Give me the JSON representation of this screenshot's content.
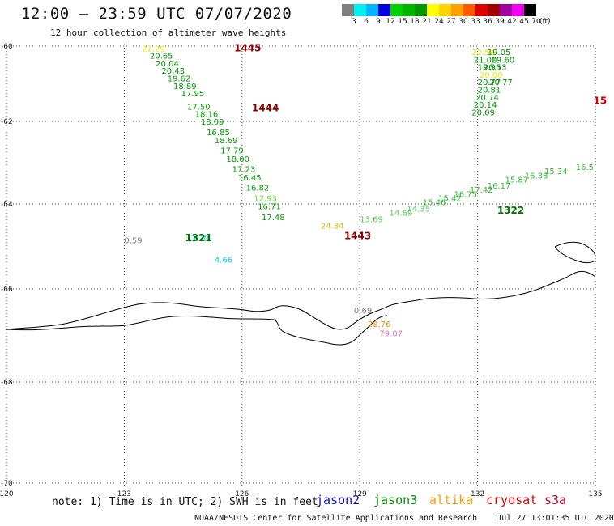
{
  "header": {
    "title": "12:00 — 23:59 UTC 07/07/2020",
    "subtitle": "12 hour collection of altimeter wave heights"
  },
  "legend": {
    "colors": [
      "#808080",
      "#00f0f0",
      "#00b4ff",
      "#0000e0",
      "#00d200",
      "#00b400",
      "#009600",
      "#ffff00",
      "#ffd200",
      "#ffa000",
      "#ff5a00",
      "#dc0000",
      "#a00000",
      "#a000a0",
      "#f000f0",
      "#000000"
    ],
    "labels": [
      "3",
      "6",
      "9",
      "12",
      "15",
      "18",
      "21",
      "24",
      "27",
      "30",
      "33",
      "36",
      "39",
      "42",
      "45",
      "70"
    ],
    "unit": "(ft)"
  },
  "axes": {
    "lon_ticks": [
      "120",
      "123",
      "126",
      "129",
      "132",
      "135"
    ],
    "lat_ticks": [
      "-60",
      "-62",
      "-64",
      "-66",
      "-68",
      "-70"
    ]
  },
  "passes": [
    {
      "label": "1445",
      "color": "#8b0000",
      "lon": 125.8,
      "lat": -60.05
    },
    {
      "label": "1444",
      "color": "#8b0000",
      "lon": 126.25,
      "lat": -61.65
    },
    {
      "label": "1321",
      "color": "#007000",
      "lon": 124.55,
      "lat": -64.8
    },
    {
      "label": "1443",
      "color": "#8b0000",
      "lon": 128.6,
      "lat": -64.75
    },
    {
      "label": "1322",
      "color": "#007000",
      "lon": 132.5,
      "lat": -64.15
    },
    {
      "label": "15",
      "color": "#cc0000",
      "lon": 134.95,
      "lat": -61.45
    }
  ],
  "observations": [
    {
      "v": "21.29",
      "c": "#e8e800",
      "lon": 123.45,
      "lat": -60.05
    },
    {
      "v": "20.65",
      "c": "#009600",
      "lon": 123.65,
      "lat": -60.25
    },
    {
      "v": "20.04",
      "c": "#009600",
      "lon": 123.8,
      "lat": -60.45
    },
    {
      "v": "20.43",
      "c": "#009600",
      "lon": 123.95,
      "lat": -60.65
    },
    {
      "v": "19.62",
      "c": "#00a000",
      "lon": 124.1,
      "lat": -60.85
    },
    {
      "v": "18.89",
      "c": "#00a000",
      "lon": 124.25,
      "lat": -61.05
    },
    {
      "v": "17.95",
      "c": "#00a000",
      "lon": 124.45,
      "lat": -61.25
    },
    {
      "v": "17.50",
      "c": "#00a000",
      "lon": 124.6,
      "lat": -61.6
    },
    {
      "v": "18.16",
      "c": "#00a000",
      "lon": 124.8,
      "lat": -61.8
    },
    {
      "v": "18.09",
      "c": "#00a000",
      "lon": 124.95,
      "lat": -62.0
    },
    {
      "v": "16.85",
      "c": "#00a000",
      "lon": 125.1,
      "lat": -62.25
    },
    {
      "v": "18.69",
      "c": "#00a000",
      "lon": 125.3,
      "lat": -62.45
    },
    {
      "v": "17.79",
      "c": "#00a000",
      "lon": 125.45,
      "lat": -62.7
    },
    {
      "v": "18.00",
      "c": "#00a000",
      "lon": 125.6,
      "lat": -62.9
    },
    {
      "v": "17.23",
      "c": "#00a000",
      "lon": 125.75,
      "lat": -63.15
    },
    {
      "v": "16.45",
      "c": "#00a000",
      "lon": 125.9,
      "lat": -63.35
    },
    {
      "v": "16.82",
      "c": "#00a000",
      "lon": 126.1,
      "lat": -63.6
    },
    {
      "v": "12.93",
      "c": "#66dd33",
      "lon": 126.3,
      "lat": -63.85
    },
    {
      "v": "16.71",
      "c": "#00a000",
      "lon": 126.4,
      "lat": -64.05
    },
    {
      "v": "17.48",
      "c": "#00a000",
      "lon": 126.5,
      "lat": -64.3
    },
    {
      "v": "0.59",
      "c": "#808080",
      "lon": 123.0,
      "lat": -64.85
    },
    {
      "v": "3.70",
      "c": "#00c8e0",
      "lon": 124.7,
      "lat": -64.8
    },
    {
      "v": "4.66",
      "c": "#00c8e0",
      "lon": 125.3,
      "lat": -65.3
    },
    {
      "v": "24.34",
      "c": "#e8b800",
      "lon": 128.0,
      "lat": -64.5
    },
    {
      "v": "13.69",
      "c": "#55cc55",
      "lon": 129.0,
      "lat": -64.35
    },
    {
      "v": "14.69",
      "c": "#55cc55",
      "lon": 129.75,
      "lat": -64.2
    },
    {
      "v": "14.35",
      "c": "#55cc55",
      "lon": 130.2,
      "lat": -64.1
    },
    {
      "v": "15.46",
      "c": "#33bb33",
      "lon": 130.6,
      "lat": -63.95
    },
    {
      "v": "15.42",
      "c": "#33bb33",
      "lon": 131.0,
      "lat": -63.85
    },
    {
      "v": "16.75",
      "c": "#33bb33",
      "lon": 131.4,
      "lat": -63.75
    },
    {
      "v": "17.42",
      "c": "#33bb33",
      "lon": 131.8,
      "lat": -63.65
    },
    {
      "v": "16.17",
      "c": "#33bb33",
      "lon": 132.25,
      "lat": -63.55
    },
    {
      "v": "15.87",
      "c": "#33bb33",
      "lon": 132.7,
      "lat": -63.4
    },
    {
      "v": "16.38",
      "c": "#33bb33",
      "lon": 133.2,
      "lat": -63.3
    },
    {
      "v": "15.34",
      "c": "#33bb33",
      "lon": 133.7,
      "lat": -63.2
    },
    {
      "v": "16.5",
      "c": "#33bb33",
      "lon": 134.5,
      "lat": -63.1
    },
    {
      "v": "22.58",
      "c": "#e8e800",
      "lon": 131.85,
      "lat": -60.15
    },
    {
      "v": "19.05",
      "c": "#009600",
      "lon": 132.25,
      "lat": -60.15
    },
    {
      "v": "21.00",
      "c": "#009600",
      "lon": 131.9,
      "lat": -60.35
    },
    {
      "v": "19.60",
      "c": "#009600",
      "lon": 132.35,
      "lat": -60.35
    },
    {
      "v": "19.95",
      "c": "#009600",
      "lon": 132.0,
      "lat": -60.55
    },
    {
      "v": "20.53",
      "c": "#009600",
      "lon": 132.15,
      "lat": -60.55
    },
    {
      "v": "20.00",
      "c": "#e8e800",
      "lon": 132.05,
      "lat": -60.75
    },
    {
      "v": "20.77",
      "c": "#009600",
      "lon": 132.0,
      "lat": -60.95
    },
    {
      "v": "20.77",
      "c": "#009600",
      "lon": 132.3,
      "lat": -60.95
    },
    {
      "v": "20.81",
      "c": "#009600",
      "lon": 132.0,
      "lat": -61.15
    },
    {
      "v": "20.74",
      "c": "#009600",
      "lon": 131.95,
      "lat": -61.35
    },
    {
      "v": "20.14",
      "c": "#009600",
      "lon": 131.9,
      "lat": -61.55
    },
    {
      "v": "20.09",
      "c": "#009600",
      "lon": 131.85,
      "lat": -61.75
    },
    {
      "v": "0.69",
      "c": "#808080",
      "lon": 128.85,
      "lat": -66.45
    },
    {
      "v": "28.76",
      "c": "#e89000",
      "lon": 129.2,
      "lat": -66.75
    },
    {
      "v": "79.07",
      "c": "#e070c0",
      "lon": 129.5,
      "lat": -66.95
    }
  ],
  "footer": {
    "note": "note: 1) Time is in UTC; 2) SWH is in feet",
    "satellites": [
      {
        "name": "jason2",
        "color": "#1010d0"
      },
      {
        "name": "jason3",
        "color": "#009000"
      },
      {
        "name": "altika",
        "color": "#ff9a00"
      },
      {
        "name": "cryosat",
        "color": "#e00000"
      },
      {
        "name": "s3a",
        "color": "#c00020"
      }
    ],
    "credit": "NOAA/NESDIS Center for Satellite Applications and Research    Jul 27 13:01:35 UTC 2020"
  }
}
